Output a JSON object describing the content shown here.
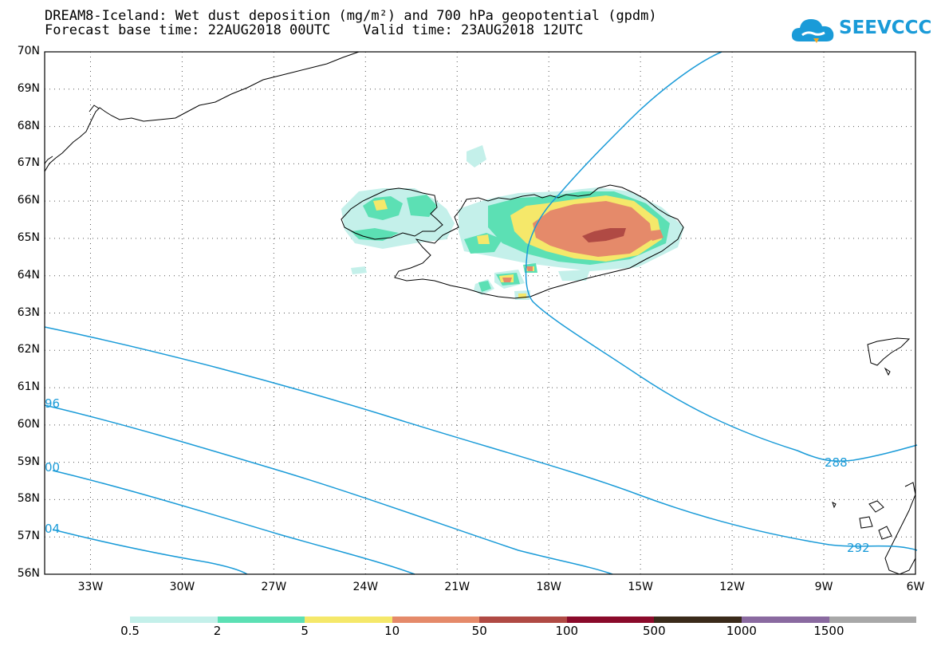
{
  "title": {
    "line1": "DREAM8-Iceland: Wet dust deposition (mg/m²) and 700 hPa geopotential (gpdm)",
    "line2": "Forecast base time: 22AUG2018 00UTC    Valid time: 23AUG2018 12UTC"
  },
  "logo": {
    "text": "SEEVCCC",
    "icon": "cloud-icon",
    "color": "#1a9bd8"
  },
  "axes": {
    "lat_labels": [
      "70N",
      "69N",
      "68N",
      "67N",
      "66N",
      "65N",
      "64N",
      "63N",
      "62N",
      "61N",
      "60N",
      "59N",
      "58N",
      "57N",
      "56N"
    ],
    "lon_labels": [
      "33W",
      "30W",
      "27W",
      "24W",
      "21W",
      "18W",
      "15W",
      "12W",
      "9W",
      "6W"
    ],
    "lat_range": [
      56,
      70
    ],
    "lon_range": [
      -34.5,
      -6
    ]
  },
  "contours": {
    "labels": [
      "96",
      "00",
      "04",
      "288",
      "292"
    ],
    "color": "#1a9bd8"
  },
  "legend": {
    "colors": [
      "#c4f0ea",
      "#5ce0b4",
      "#f5e86a",
      "#e58a6a",
      "#b04a44",
      "#8a0a2a",
      "#3a2a1a",
      "#8a6aa0",
      "#a8a8a8"
    ],
    "labels": [
      "0.5",
      "2",
      "5",
      "10",
      "50",
      "100",
      "500",
      "1000",
      "1500"
    ]
  }
}
